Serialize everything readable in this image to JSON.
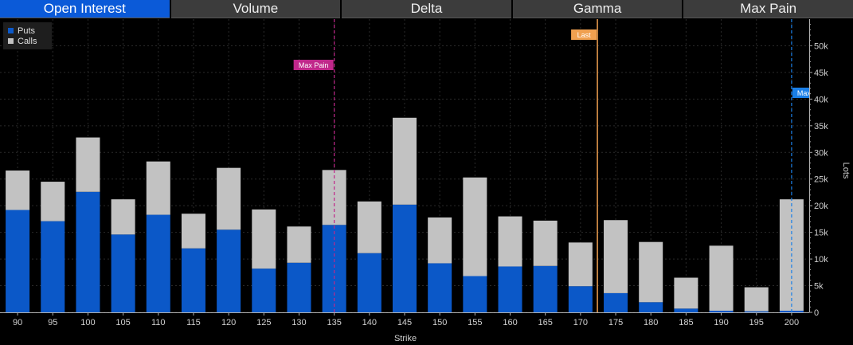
{
  "tabs": [
    {
      "label": "Open Interest",
      "active": true
    },
    {
      "label": "Volume",
      "active": false
    },
    {
      "label": "Delta",
      "active": false
    },
    {
      "label": "Gamma",
      "active": false
    },
    {
      "label": "Max Pain",
      "active": false
    }
  ],
  "colors": {
    "puts": "#0b58c8",
    "calls": "#c2c2c2",
    "max_pain": "#c0278a",
    "last": "#f0a050",
    "max_call_oi": "#1a7fe8"
  },
  "chart_data": {
    "type": "bar",
    "stacked": true,
    "categories": [
      "90",
      "95",
      "100",
      "105",
      "110",
      "115",
      "120",
      "125",
      "130",
      "135",
      "140",
      "145",
      "150",
      "155",
      "160",
      "165",
      "170",
      "175",
      "180",
      "185",
      "190",
      "195",
      "200"
    ],
    "series": [
      {
        "name": "Puts",
        "values": [
          19200,
          17100,
          22600,
          14600,
          18300,
          12000,
          15500,
          8200,
          9300,
          16400,
          11100,
          20200,
          9200,
          6800,
          8600,
          8700,
          4900,
          3600,
          1900,
          700,
          300,
          200,
          300
        ]
      },
      {
        "name": "Calls",
        "values": [
          7400,
          7400,
          10200,
          6600,
          10000,
          6500,
          11600,
          11100,
          6800,
          10300,
          9700,
          16300,
          8600,
          18500,
          9400,
          8500,
          8200,
          13700,
          11300,
          5800,
          12200,
          4500,
          20900
        ]
      }
    ],
    "xlabel": "Strike",
    "ylabel": "Lots",
    "ylim": [
      0,
      55000
    ],
    "yticks": [
      0,
      5000,
      10000,
      15000,
      20000,
      25000,
      30000,
      35000,
      40000,
      45000,
      50000
    ],
    "ytick_labels": [
      "0",
      "5k",
      "10k",
      "15k",
      "20k",
      "25k",
      "30k",
      "35k",
      "40k",
      "45k",
      "50k"
    ],
    "legend": {
      "placement": "top-left",
      "entries": [
        "Puts",
        "Calls"
      ]
    },
    "grid": true,
    "annotations": [
      {
        "label": "Max Pain",
        "x": 135,
        "style": "dashed"
      },
      {
        "label": "Last",
        "x": 172.4,
        "style": "solid"
      },
      {
        "label": "Max Call OI",
        "x": 200,
        "style": "dashed"
      }
    ]
  }
}
